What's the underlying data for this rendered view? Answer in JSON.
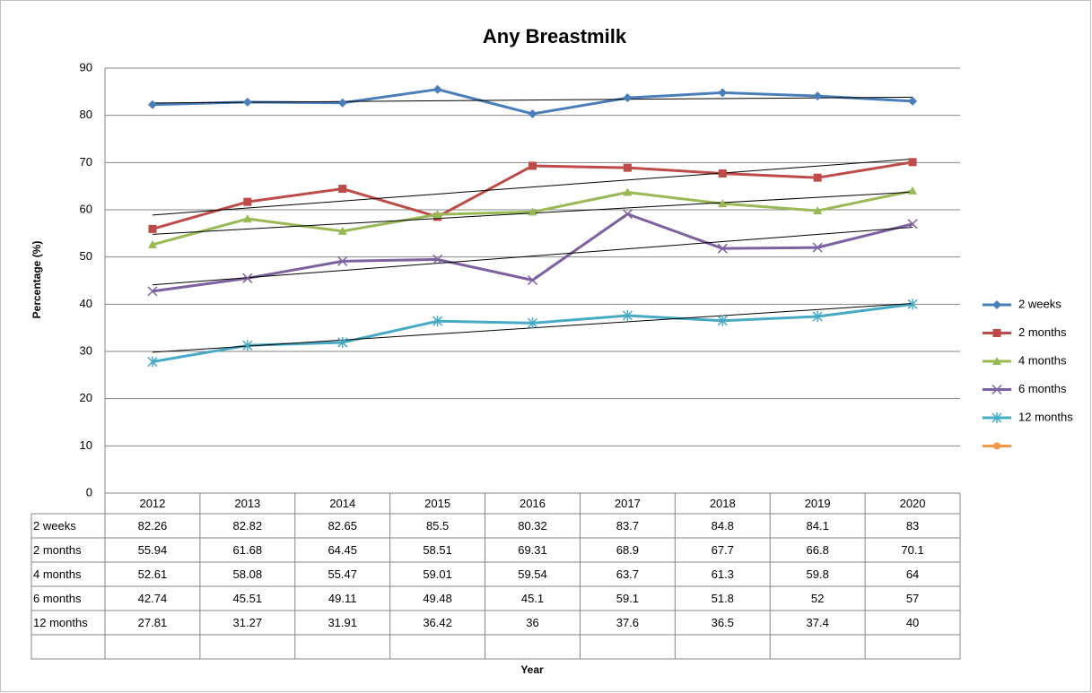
{
  "chart_data": {
    "type": "line",
    "title": "Any Breastmilk",
    "y_label": "Percentage (%)",
    "x_label": "Year",
    "categories": [
      "2012",
      "2013",
      "2014",
      "2015",
      "2016",
      "2017",
      "2018",
      "2019",
      "2020"
    ],
    "ylim": [
      0,
      90
    ],
    "yticks": [
      0,
      10,
      20,
      30,
      40,
      50,
      60,
      70,
      80,
      90
    ],
    "grid": true,
    "trendline": true,
    "legend": "right",
    "data_table": true,
    "series": [
      {
        "name": "2 weeks",
        "color": "#4a7ebb",
        "marker": "diamond",
        "values": [
          82.26,
          82.82,
          82.65,
          85.5,
          80.32,
          83.7,
          84.8,
          84.1,
          83
        ]
      },
      {
        "name": "2 months",
        "color": "#be4b48",
        "marker": "square",
        "values": [
          55.94,
          61.68,
          64.45,
          58.51,
          69.31,
          68.9,
          67.7,
          66.8,
          70.1
        ]
      },
      {
        "name": "4 months",
        "color": "#98b954",
        "marker": "triangle",
        "values": [
          52.61,
          58.08,
          55.47,
          59.01,
          59.54,
          63.7,
          61.3,
          59.8,
          64
        ]
      },
      {
        "name": "6 months",
        "color": "#7d60a0",
        "marker": "x",
        "values": [
          42.74,
          45.51,
          49.11,
          49.48,
          45.1,
          59.1,
          51.8,
          52,
          57
        ]
      },
      {
        "name": "12 months",
        "color": "#46aac5",
        "marker": "star",
        "values": [
          27.81,
          31.27,
          31.91,
          36.42,
          36,
          37.6,
          36.5,
          37.4,
          40
        ]
      },
      {
        "color": "#f79646",
        "marker": "circle",
        "values": [
          null,
          null,
          null,
          null,
          null,
          null,
          null,
          null,
          null
        ]
      }
    ]
  }
}
